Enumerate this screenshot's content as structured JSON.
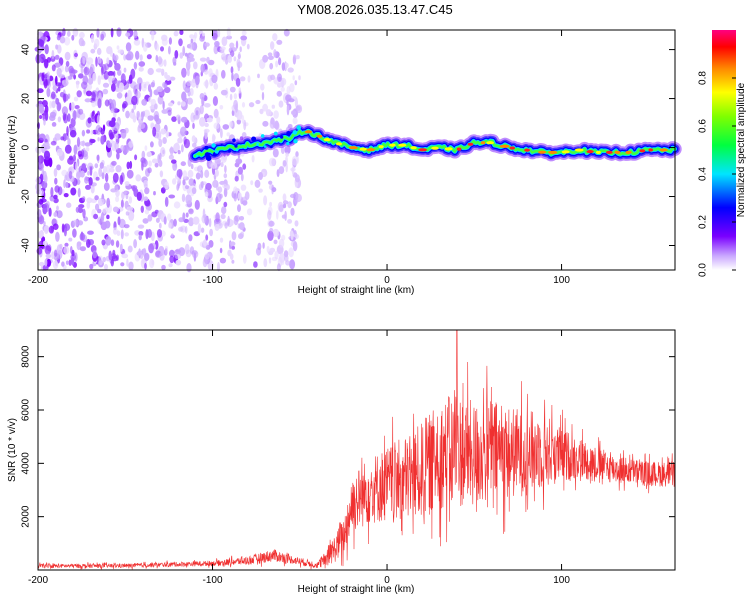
{
  "title": "YM08.2026.035.13.47.C45",
  "chart_data": [
    {
      "type": "heatmap",
      "name": "spectrogram",
      "xlabel": "Height of straight line (km)",
      "ylabel": "Frequency (Hz)",
      "xlim": [
        -200,
        165
      ],
      "ylim": [
        -50,
        48
      ],
      "xticks": [
        -200,
        -100,
        0,
        100
      ],
      "yticks": [
        -40,
        -20,
        0,
        20,
        40
      ],
      "ridge": {
        "description": "Strong narrow-band signal centred near 0 Hz from about -110 km to 165 km",
        "x": [
          -110,
          -90,
          -70,
          -55,
          -47,
          -40,
          -30,
          -20,
          -10,
          0,
          10,
          20,
          30,
          40,
          50,
          60,
          70,
          80,
          90,
          100,
          110,
          120,
          130,
          140,
          150,
          160,
          165
        ],
        "y": [
          -3,
          0,
          2,
          4,
          7,
          5,
          2,
          0,
          -1,
          1,
          1,
          -1,
          0,
          -1,
          2,
          2,
          0,
          -1,
          -2,
          -2,
          -1,
          -2,
          -2,
          -2,
          -1,
          -1,
          -1
        ]
      },
      "noise_region_x": [
        -200,
        -50
      ],
      "colorbar": {
        "label": "Normalized spectral amplitude",
        "ticks": [
          0.0,
          0.2,
          0.4,
          0.6,
          0.8
        ],
        "tick_labels": [
          "0.0",
          "0.2",
          "0.4",
          "0.6",
          "0.8"
        ],
        "range": [
          0,
          1
        ],
        "colormap": [
          "#ffffff",
          "#7a00ff",
          "#0000ff",
          "#00e5ff",
          "#00ff00",
          "#ffff00",
          "#ff8800",
          "#ff0000",
          "#ff0080"
        ]
      }
    },
    {
      "type": "line",
      "name": "snr",
      "xlabel": "Height of straight line (km)",
      "ylabel": "SNR (10 * v/v)",
      "xlim": [
        -200,
        165
      ],
      "ylim": [
        0,
        9000
      ],
      "xticks": [
        -200,
        -100,
        0,
        100
      ],
      "yticks": [
        2000,
        4000,
        6000,
        8000
      ],
      "color": "#f03030",
      "envelope": {
        "x": [
          -200,
          -150,
          -100,
          -80,
          -65,
          -55,
          -40,
          -35,
          -25,
          -20,
          -10,
          0,
          10,
          20,
          30,
          40,
          50,
          60,
          70,
          80,
          90,
          100,
          110,
          120,
          130,
          140,
          150,
          165
        ],
        "mean": [
          150,
          160,
          250,
          350,
          550,
          400,
          180,
          400,
          1200,
          2500,
          3000,
          3200,
          3400,
          3700,
          4300,
          4500,
          4300,
          4500,
          4400,
          4400,
          4500,
          4300,
          4200,
          4000,
          3800,
          3700,
          3600,
          3600
        ],
        "spread": [
          100,
          100,
          120,
          200,
          300,
          200,
          150,
          400,
          900,
          1400,
          1600,
          1800,
          2000,
          2300,
          2500,
          2700,
          2500,
          2400,
          2200,
          2000,
          1800,
          1300,
          1000,
          800,
          700,
          600,
          600,
          600
        ]
      },
      "peak": {
        "x": 40,
        "y": 9000
      }
    }
  ]
}
